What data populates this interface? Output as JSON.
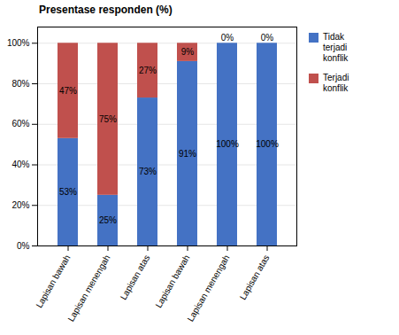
{
  "chart_data": {
    "type": "bar",
    "title": "Presentase responden (%)",
    "categories": [
      "Lapisan bawah",
      "Lapisan menengah",
      "Lapisan atas",
      "Lapisan bawah",
      "Lapisan menengah",
      "Lapisan atas"
    ],
    "series": [
      {
        "name": "Tidak\nterjadi\nkonflik",
        "color": "#4472C4",
        "values": [
          53,
          25,
          73,
          91,
          100,
          100
        ],
        "value_labels": [
          "53%",
          "25%",
          "73%",
          "91%",
          "100%",
          "100%"
        ]
      },
      {
        "name": "Terjadi\nkonflik",
        "color": "#C0504D",
        "values": [
          47,
          75,
          27,
          9,
          0,
          0
        ],
        "value_labels": [
          "47%",
          "75%",
          "27%",
          "9%",
          "0%",
          "0%"
        ]
      }
    ],
    "stacked": true,
    "data_labels": true,
    "ylim": [
      0,
      108
    ],
    "yticks": [
      {
        "value": 0,
        "label": "0%"
      },
      {
        "value": 20,
        "label": "20%"
      },
      {
        "value": 40,
        "label": "40%"
      },
      {
        "value": 60,
        "label": "60%"
      },
      {
        "value": 80,
        "label": "80%"
      },
      {
        "value": 100,
        "label": "100%"
      }
    ],
    "grid": true,
    "legend": "right"
  }
}
